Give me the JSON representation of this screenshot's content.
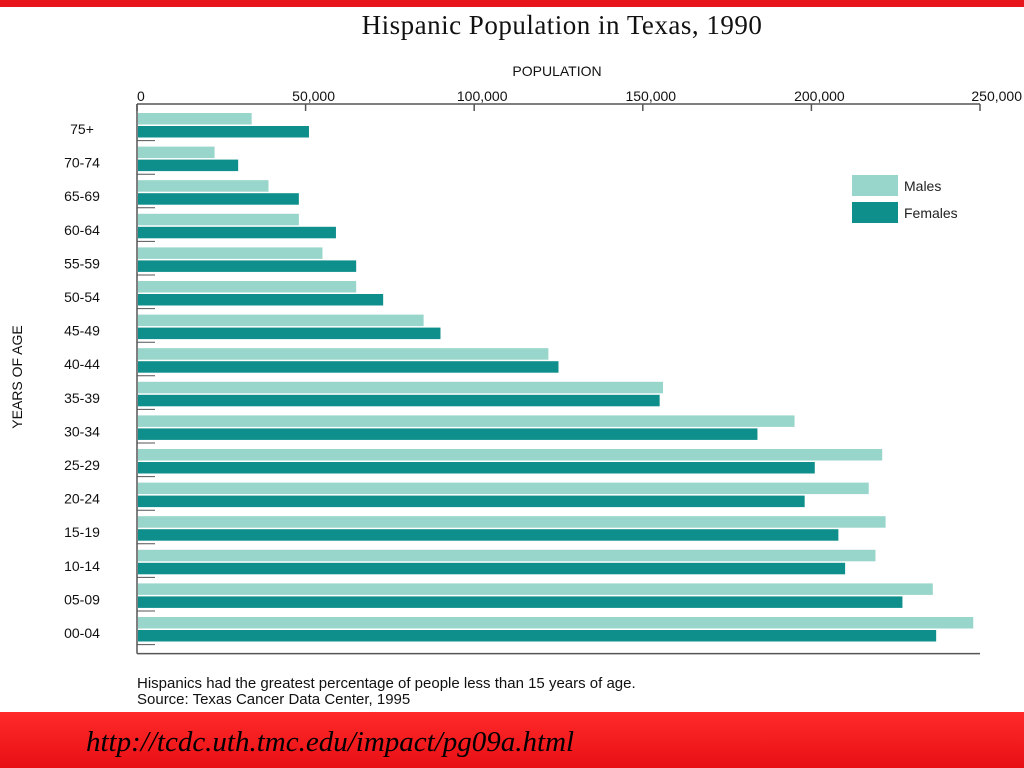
{
  "chart_data": {
    "type": "bar",
    "orientation": "horizontal",
    "title": "Hispanic Population in Texas, 1990",
    "xlabel": "POPULATION",
    "ylabel": "YEARS OF AGE",
    "xlim": [
      0,
      250000
    ],
    "xticks": [
      "0",
      "50,000",
      "100,000",
      "150,000",
      "200,000",
      "250,000"
    ],
    "categories": [
      "75+",
      "70-74",
      "65-69",
      "60-64",
      "55-59",
      "50-54",
      "45-49",
      "40-44",
      "35-39",
      "30-34",
      "25-29",
      "20-24",
      "15-19",
      "10-14",
      "05-09",
      "00-04"
    ],
    "series": [
      {
        "name": "Males",
        "color": "#98d5cb",
        "values": [
          34000,
          23000,
          39000,
          48000,
          55000,
          65000,
          85000,
          122000,
          156000,
          195000,
          221000,
          217000,
          222000,
          219000,
          236000,
          248000
        ]
      },
      {
        "name": "Females",
        "color": "#0f8f8b",
        "values": [
          51000,
          30000,
          48000,
          59000,
          65000,
          73000,
          90000,
          125000,
          155000,
          184000,
          201000,
          198000,
          208000,
          210000,
          227000,
          237000
        ]
      }
    ],
    "legend_position": "top-right",
    "grid": false
  },
  "caption": {
    "line1": "Hispanics had the greatest percentage of people less than 15 years of age.",
    "line2": "Source: Texas Cancer Data Center, 1995"
  },
  "url": "http://tcdc.uth.tmc.edu/impact/pg09a.html",
  "colors": {
    "accent_red": "#e8141c"
  }
}
